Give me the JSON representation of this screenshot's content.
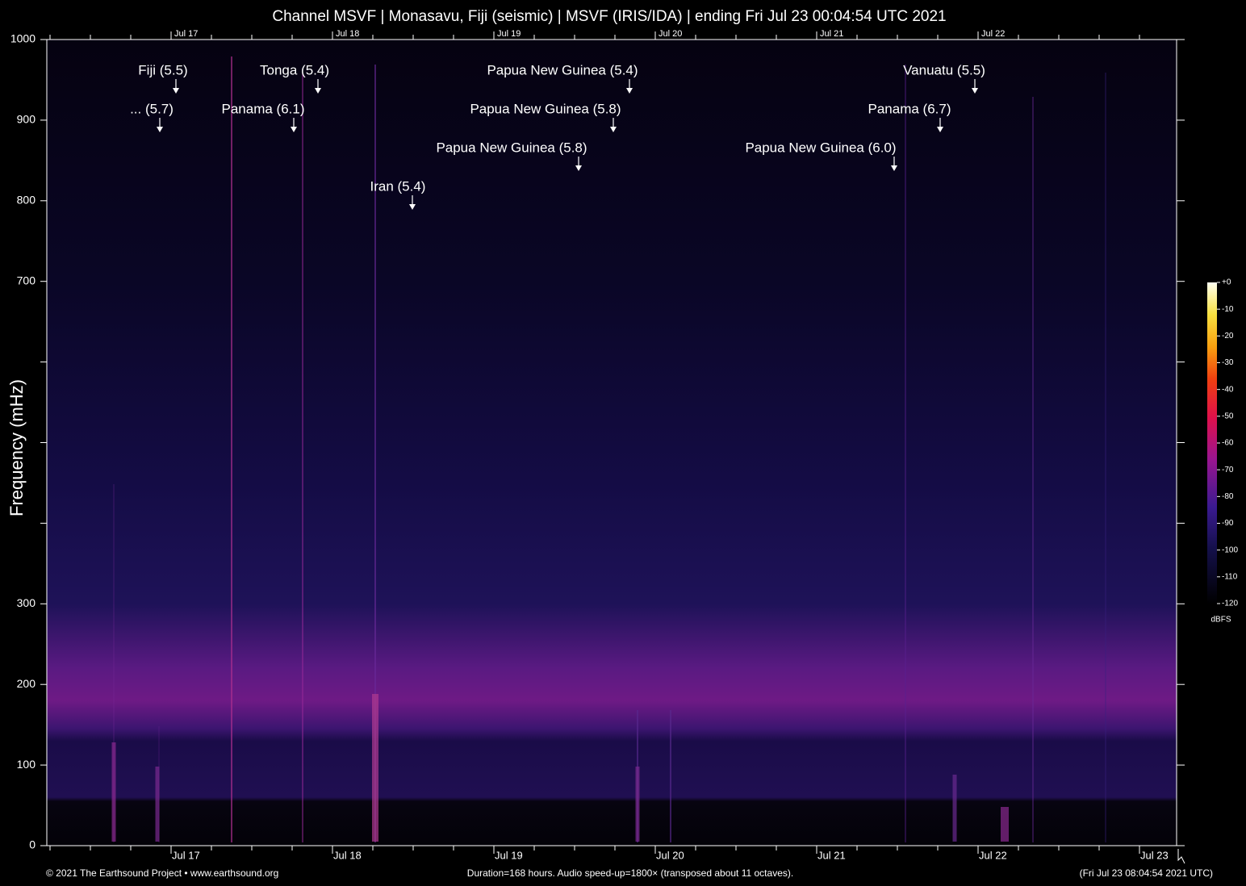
{
  "chart_data": {
    "type": "spectrogram",
    "title": "Channel MSVF | Monasavu, Fiji (seismic) | MSVF (IRIS/IDA) | ending Fri Jul 23 00:04:54 UTC 2021",
    "y_label": "Frequency (mHz)",
    "ylim": [
      0,
      1000
    ],
    "yticks": [
      0,
      100,
      200,
      300,
      700,
      800,
      900,
      1000
    ],
    "yticks_minor": [
      400,
      500,
      600
    ],
    "xticks": [
      "Jul 17",
      "Jul 18",
      "Jul 19",
      "Jul 20",
      "Jul 21",
      "Jul 22",
      "Jul 23"
    ],
    "annotations": [
      "Fiji (5.5)",
      "... (5.7)",
      "Tonga (5.4)",
      "Panama (6.1)",
      "Papua New Guinea (5.4)",
      "Papua New Guinea (5.8)",
      "Papua New Guinea (5.8)",
      "Iran (5.4)",
      "Papua New Guinea (6.0)",
      "Vanuatu (5.5)",
      "Panama (6.7)"
    ],
    "colorbar": {
      "label": "dBFS",
      "clim": [
        -120,
        0
      ],
      "ticks": [
        {
          "value": 0,
          "label": "+0"
        },
        -10,
        -20,
        -30,
        -40,
        -50,
        -60,
        -70,
        -80,
        -90,
        -100,
        -110,
        -120
      ]
    },
    "footer_left": "© 2021 The Earthsound Project • www.earthsound.org",
    "footer_center": "Duration=168 hours. Audio speed-up=1800× (transposed about 11 octaves).",
    "footer_right": "(Fri Jul 23 08:04:54 2021 UTC)"
  }
}
